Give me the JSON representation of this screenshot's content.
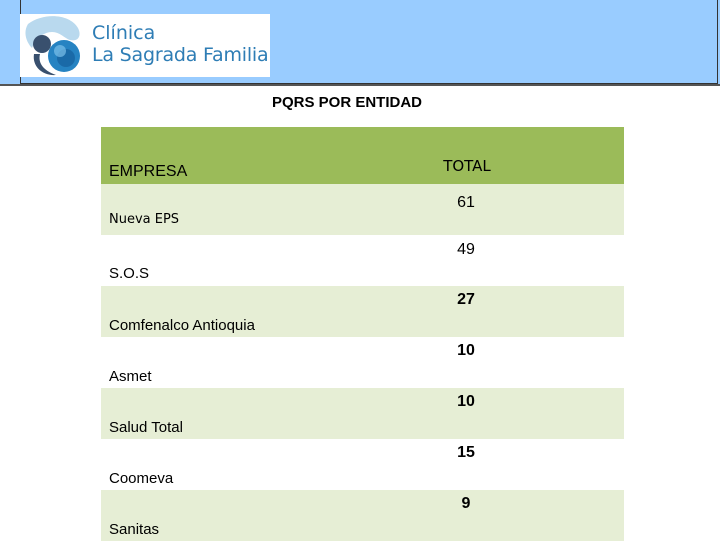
{
  "header": {
    "logo_line1": "Clínica",
    "logo_line2": "La Sagrada Familia",
    "band_color": "#99ccff",
    "logo_icon": "logo-mark-icon"
  },
  "title": "PQRS POR ENTIDAD",
  "table": {
    "header_color": "#9bbb59",
    "stripe_color": "#e6eed5",
    "columns": [
      "EMPRESA",
      "TOTAL"
    ],
    "rows": [
      {
        "empresa": "Nueva EPS",
        "total": "61"
      },
      {
        "empresa": "S.O.S",
        "total": "49"
      },
      {
        "empresa": "Comfenalco Antioquia",
        "total": "27"
      },
      {
        "empresa": "Asmet",
        "total": "10"
      },
      {
        "empresa": "Salud Total",
        "total": "10"
      },
      {
        "empresa": "Coomeva",
        "total": "15"
      },
      {
        "empresa": "Sanitas",
        "total": "9"
      }
    ]
  }
}
